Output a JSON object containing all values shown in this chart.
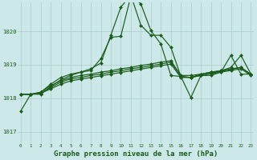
{
  "background_color": "#cce8e8",
  "grid_color": "#aacccc",
  "line_color": "#1a5c1a",
  "xlabel": "Graphe pression niveau de la mer (hPa)",
  "xlabel_fontsize": 6.5,
  "ylabel_ticks": [
    1017,
    1018,
    1019,
    1020
  ],
  "xlim": [
    -0.3,
    23.3
  ],
  "ylim": [
    1016.65,
    1020.85
  ],
  "series1": [
    1017.62,
    1018.12,
    1018.12,
    1018.35,
    1018.55,
    1018.68,
    1018.78,
    1018.83,
    1019.18,
    1019.82,
    1019.85,
    1021.05,
    1020.82,
    1020.02,
    1019.62,
    1018.68,
    1018.65,
    1018.02,
    1018.68,
    1018.68,
    1018.78,
    1019.28,
    1018.72,
    1018.72
  ],
  "series2": [
    1018.12,
    1018.12,
    1018.18,
    1018.42,
    1018.62,
    1018.72,
    1018.78,
    1018.88,
    1019.05,
    1019.88,
    1020.72,
    1021.08,
    1020.18,
    1019.88,
    1019.88,
    1019.52,
    1018.65,
    1018.62,
    1018.72,
    1018.78,
    1018.82,
    1018.92,
    1019.28,
    1018.72
  ],
  "series3": [
    1018.12,
    1018.12,
    1018.18,
    1018.38,
    1018.52,
    1018.62,
    1018.68,
    1018.72,
    1018.78,
    1018.82,
    1018.88,
    1018.92,
    1018.98,
    1019.02,
    1019.08,
    1019.12,
    1018.68,
    1018.68,
    1018.72,
    1018.78,
    1018.82,
    1018.88,
    1018.92,
    1018.72
  ],
  "series4": [
    1018.12,
    1018.12,
    1018.15,
    1018.32,
    1018.48,
    1018.58,
    1018.62,
    1018.68,
    1018.72,
    1018.78,
    1018.82,
    1018.88,
    1018.92,
    1018.97,
    1019.02,
    1019.08,
    1018.65,
    1018.62,
    1018.68,
    1018.75,
    1018.8,
    1018.86,
    1018.92,
    1018.7
  ],
  "series5": [
    1018.12,
    1018.12,
    1018.15,
    1018.28,
    1018.42,
    1018.52,
    1018.57,
    1018.62,
    1018.67,
    1018.72,
    1018.77,
    1018.82,
    1018.87,
    1018.92,
    1018.97,
    1019.02,
    1018.62,
    1018.62,
    1018.68,
    1018.73,
    1018.78,
    1018.83,
    1018.88,
    1018.68
  ]
}
